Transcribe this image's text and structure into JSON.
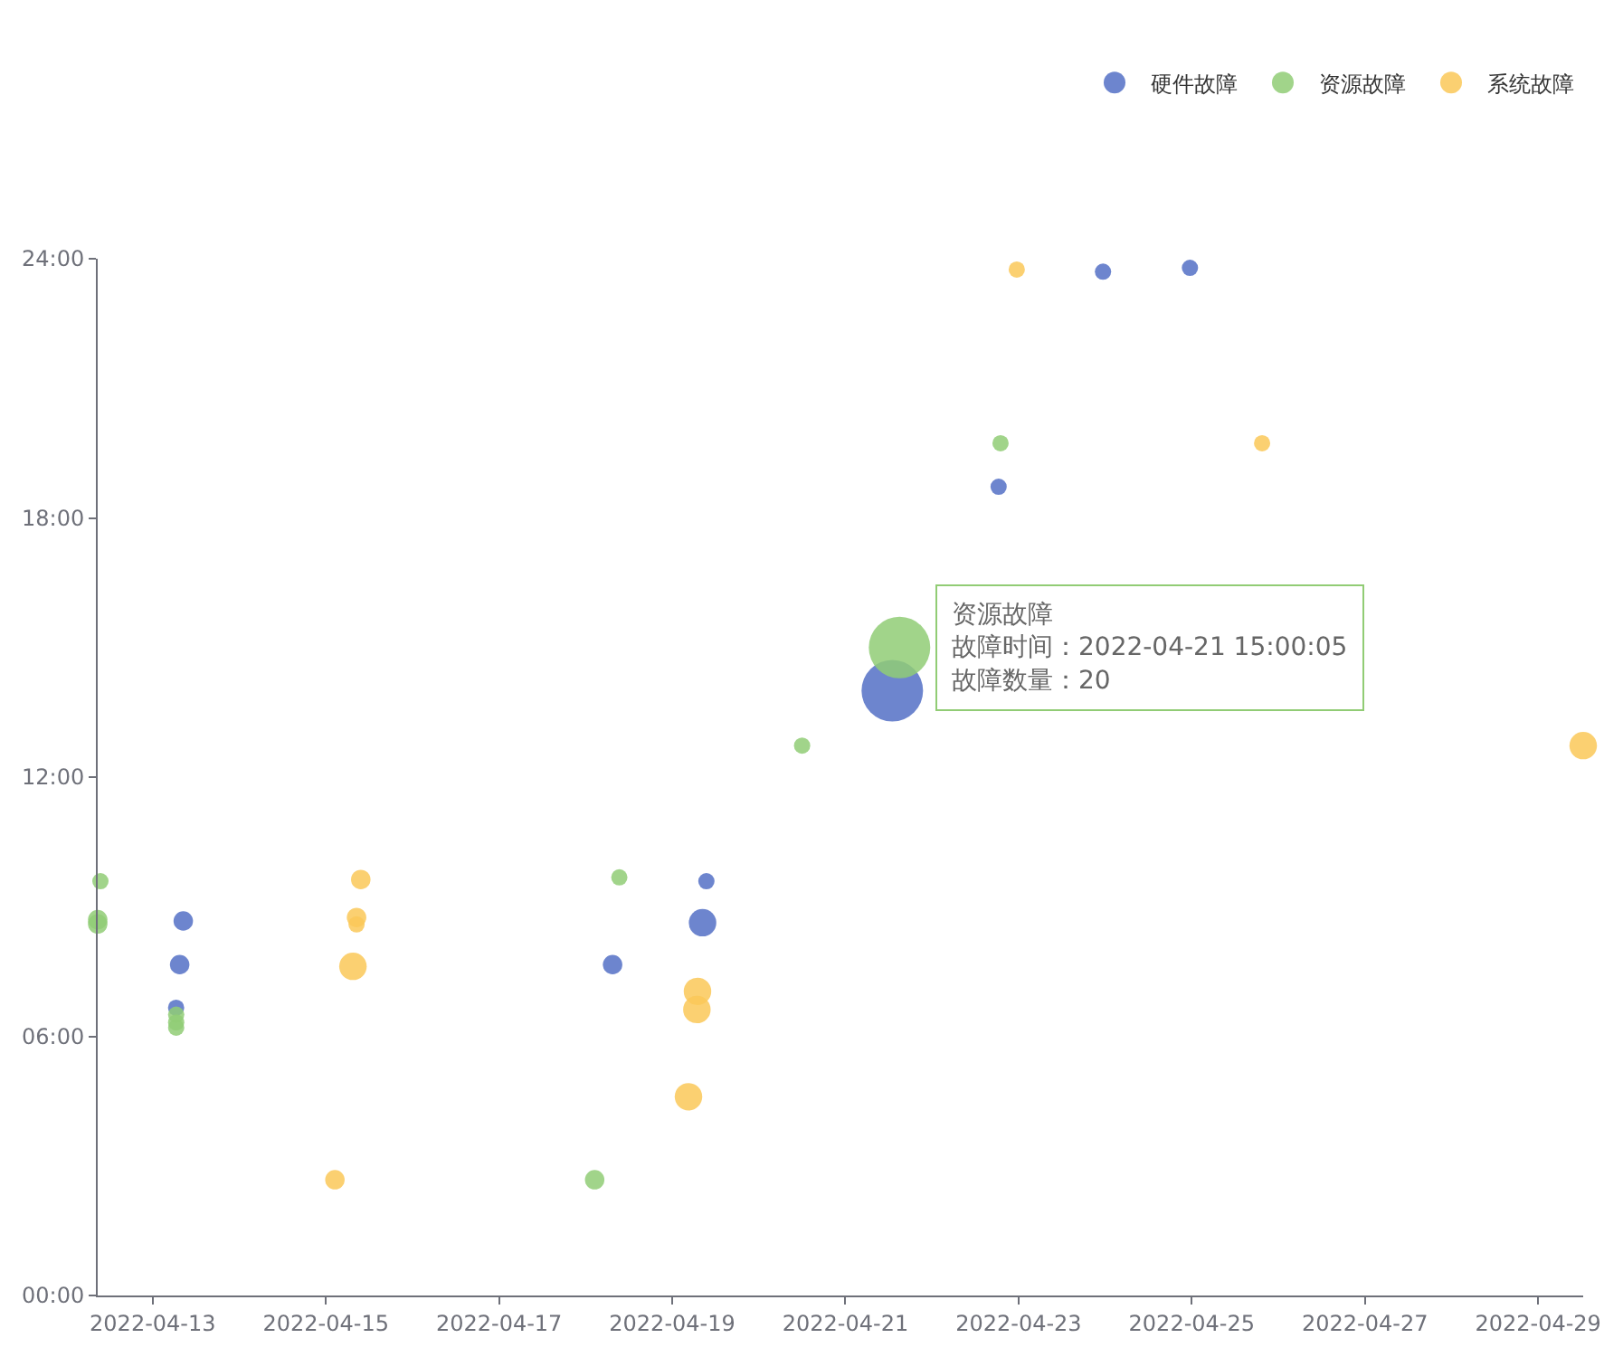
{
  "chart_data": {
    "type": "bubble",
    "series": [
      {
        "name": "硬件故障",
        "color": "#5470c6",
        "x": [
          "2022-04-13T08:28",
          "2022-04-13T07:28",
          "2022-04-13T06:29",
          "2022-04-18T07:28",
          "2022-04-19T09:28",
          "2022-04-19T08:24",
          "2022-04-21T13:00",
          "2022-04-22T18:28",
          "2022-04-23T23:24",
          "2022-04-24T23:30"
        ],
        "values": [
          8.67,
          7.66,
          6.66,
          7.66,
          9.59,
          8.63,
          14.0,
          18.72,
          23.7,
          23.79
        ],
        "sizes": [
          0.1,
          0.1,
          0.07,
          0.1,
          0.07,
          0.2,
          1,
          0.07,
          0.07,
          0.07
        ]
      },
      {
        "name": "资源故障",
        "color": "#91cc75",
        "x": [
          "2022-04-12T09:30",
          "2022-04-12T08:45",
          "2022-04-12T08:45",
          "2022-04-13T06:30",
          "2022-04-13T06:30",
          "2022-04-13T06:30",
          "2022-04-18T02:30",
          "2022-04-18T09:20",
          "2022-04-20T12:00",
          "2022-04-21T15:00:05",
          "2022-04-22T19:00"
        ],
        "values": [
          9.59,
          8.7,
          8.6,
          6.5,
          6.32,
          6.2,
          2.68,
          9.68,
          12.73,
          15.0,
          19.73
        ],
        "sizes": [
          0.07,
          0.1,
          0.1,
          0.07,
          0.07,
          0.07,
          0.1,
          0.07,
          0.07,
          1,
          0.07
        ]
      },
      {
        "name": "系统故障",
        "color": "#fac858",
        "x": [
          "2022-04-15T09:40",
          "2022-04-15T08:30",
          "2022-04-15T08:30",
          "2022-04-15T07:30",
          "2022-04-15T02:30",
          "2022-04-19T04:30",
          "2022-04-19T07:00",
          "2022-04-19T06:50",
          "2022-04-22T23:30",
          "2022-04-25T19:30",
          "2022-04-29T12:30"
        ],
        "values": [
          9.63,
          8.75,
          8.59,
          7.62,
          2.68,
          4.6,
          7.04,
          6.62,
          23.75,
          19.73,
          12.73
        ],
        "sizes": [
          0.1,
          0.1,
          0.07,
          0.2,
          0.1,
          0.2,
          0.2,
          0.2,
          0.07,
          0.07,
          0.2
        ]
      }
    ],
    "xlim": [
      "2022-04-12T08:45",
      "2022-04-29T12:30"
    ],
    "xticks": [
      {
        "value": "2022-04-13",
        "label": "2022-04-13"
      },
      {
        "value": "2022-04-15",
        "label": "2022-04-15"
      },
      {
        "value": "2022-04-17",
        "label": "2022-04-17"
      },
      {
        "value": "2022-04-19",
        "label": "2022-04-19"
      },
      {
        "value": "2022-04-21",
        "label": "2022-04-21"
      },
      {
        "value": "2022-04-23",
        "label": "2022-04-23"
      },
      {
        "value": "2022-04-25",
        "label": "2022-04-25"
      },
      {
        "value": "2022-04-27",
        "label": "2022-04-27"
      },
      {
        "value": "2022-04-29",
        "label": "2022-04-29"
      }
    ],
    "ylim": [
      0,
      24
    ],
    "yticks": [
      {
        "value": 0,
        "label": "00:00"
      },
      {
        "value": 6,
        "label": "06:00"
      },
      {
        "value": 12,
        "label": "12:00"
      },
      {
        "value": 18,
        "label": "18:00"
      },
      {
        "value": 24,
        "label": "24:00"
      }
    ],
    "annotations": [
      {
        "text": "资源故障",
        "x": "2022-04-21T15:00:05",
        "y": 15.0
      },
      {
        "text": "故障时间：2022-04-21 15:00:05",
        "x": "2022-04-21T15:00:05",
        "y": 15.0
      },
      {
        "text": "故障数量：20",
        "x": "2022-04-21T15:00:05",
        "y": 15.0
      }
    ],
    "legend": "top right",
    "marker": "circle"
  }
}
